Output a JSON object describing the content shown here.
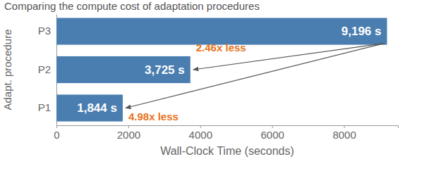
{
  "chart_data": {
    "type": "bar",
    "orientation": "horizontal",
    "title": "Comparing the compute cost of adaptation procedures",
    "x_label": "Wall-Clock Time (seconds)",
    "y_label": "Adapt. procedure",
    "categories": [
      "P3",
      "P2",
      "P1"
    ],
    "values": [
      9196,
      3725,
      1844
    ],
    "value_labels": [
      "9,196 s",
      "3,725 s",
      "1,844 s"
    ],
    "data_labels": true,
    "color": "#4a7eb0",
    "xlim": [
      0,
      9500
    ],
    "xticks": [
      0,
      2000,
      4000,
      6000,
      8000
    ],
    "grid": false,
    "annotations": [
      {
        "text": "2.46x less",
        "from": "P3",
        "to": "P2"
      },
      {
        "text": "4.98x less",
        "from": "P3",
        "to": "P1"
      }
    ]
  }
}
